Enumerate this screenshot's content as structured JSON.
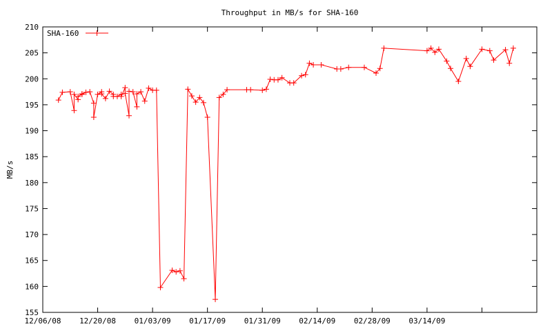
{
  "chart_data": {
    "type": "line",
    "title": "Throughput in MB/s for SHA-160",
    "xlabel": "",
    "ylabel": "MB/s",
    "xlim": [
      "2008-12-06",
      "2009-04-11"
    ],
    "ylim": [
      155,
      210
    ],
    "yticks": [
      155,
      160,
      165,
      170,
      175,
      180,
      185,
      190,
      195,
      200,
      205,
      210
    ],
    "xtick_labels": [
      "12/06/08",
      "12/20/08",
      "01/03/09",
      "01/17/09",
      "01/31/09",
      "02/14/09",
      "02/28/09",
      "03/14/09"
    ],
    "xtick_interval_days": 14,
    "grid": false,
    "legend": "top-left",
    "color": "#ff0000",
    "marker": "plus",
    "series": [
      {
        "name": "SHA-160",
        "points": [
          [
            "2008-12-10",
            195.9
          ],
          [
            "2008-12-11",
            197.4
          ],
          [
            "2008-12-13",
            197.5
          ],
          [
            "2008-12-14",
            193.9
          ],
          [
            "2008-12-14",
            197.0
          ],
          [
            "2008-12-15",
            196.0
          ],
          [
            "2008-12-15",
            196.6
          ],
          [
            "2008-12-16",
            197.0
          ],
          [
            "2008-12-16",
            197.1
          ],
          [
            "2008-12-17",
            197.4
          ],
          [
            "2008-12-18",
            197.5
          ],
          [
            "2008-12-19",
            195.3
          ],
          [
            "2008-12-19",
            192.6
          ],
          [
            "2008-12-20",
            197.0
          ],
          [
            "2008-12-21",
            197.5
          ],
          [
            "2008-12-21",
            197.1
          ],
          [
            "2008-12-22",
            196.2
          ],
          [
            "2008-12-23",
            197.6
          ],
          [
            "2008-12-24",
            197.0
          ],
          [
            "2008-12-24",
            196.6
          ],
          [
            "2008-12-25",
            196.6
          ],
          [
            "2008-12-26",
            197.0
          ],
          [
            "2008-12-26",
            196.6
          ],
          [
            "2008-12-27",
            198.3
          ],
          [
            "2008-12-27",
            197.2
          ],
          [
            "2008-12-28",
            192.9
          ],
          [
            "2008-12-28",
            197.6
          ],
          [
            "2008-12-29",
            197.5
          ],
          [
            "2008-12-30",
            194.6
          ],
          [
            "2008-12-30",
            197.1
          ],
          [
            "2008-12-31",
            197.5
          ],
          [
            "2009-01-01",
            195.7
          ],
          [
            "2009-01-02",
            198.2
          ],
          [
            "2009-01-03",
            197.8
          ],
          [
            "2009-01-04",
            197.8
          ],
          [
            "2009-01-05",
            159.8
          ],
          [
            "2009-01-08",
            163.1
          ],
          [
            "2009-01-09",
            162.8
          ],
          [
            "2009-01-10",
            163.0
          ],
          [
            "2009-01-11",
            161.5
          ],
          [
            "2009-01-12",
            198.0
          ],
          [
            "2009-01-13",
            196.7
          ],
          [
            "2009-01-14",
            195.5
          ],
          [
            "2009-01-15",
            196.4
          ],
          [
            "2009-01-16",
            195.4
          ],
          [
            "2009-01-17",
            192.6
          ],
          [
            "2009-01-19",
            157.5
          ],
          [
            "2009-01-20",
            196.4
          ],
          [
            "2009-01-21",
            197.0
          ],
          [
            "2009-01-22",
            197.9
          ],
          [
            "2009-01-27",
            197.9
          ],
          [
            "2009-01-28",
            197.9
          ],
          [
            "2009-01-31",
            197.8
          ],
          [
            "2009-02-01",
            198.0
          ],
          [
            "2009-02-02",
            199.9
          ],
          [
            "2009-02-03",
            199.8
          ],
          [
            "2009-02-04",
            199.8
          ],
          [
            "2009-02-05",
            200.2
          ],
          [
            "2009-02-07",
            199.2
          ],
          [
            "2009-02-08",
            199.2
          ],
          [
            "2009-02-10",
            200.6
          ],
          [
            "2009-02-11",
            200.8
          ],
          [
            "2009-02-12",
            203.0
          ],
          [
            "2009-02-13",
            202.7
          ],
          [
            "2009-02-15",
            202.7
          ],
          [
            "2009-02-19",
            201.9
          ],
          [
            "2009-02-20",
            201.9
          ],
          [
            "2009-02-22",
            202.2
          ],
          [
            "2009-02-26",
            202.2
          ],
          [
            "2009-03-01",
            201.1
          ],
          [
            "2009-03-02",
            202.0
          ],
          [
            "2009-03-03",
            205.9
          ],
          [
            "2009-03-14",
            205.4
          ],
          [
            "2009-03-15",
            205.9
          ],
          [
            "2009-03-16",
            205.1
          ],
          [
            "2009-03-17",
            205.7
          ],
          [
            "2009-03-19",
            203.4
          ],
          [
            "2009-03-20",
            202.0
          ],
          [
            "2009-03-22",
            199.5
          ],
          [
            "2009-03-24",
            203.9
          ],
          [
            "2009-03-25",
            202.4
          ],
          [
            "2009-03-28",
            205.7
          ],
          [
            "2009-03-30",
            205.4
          ],
          [
            "2009-03-31",
            203.6
          ],
          [
            "2009-04-03",
            205.6
          ],
          [
            "2009-04-04",
            203.0
          ],
          [
            "2009-04-05",
            205.9
          ]
        ]
      }
    ]
  }
}
